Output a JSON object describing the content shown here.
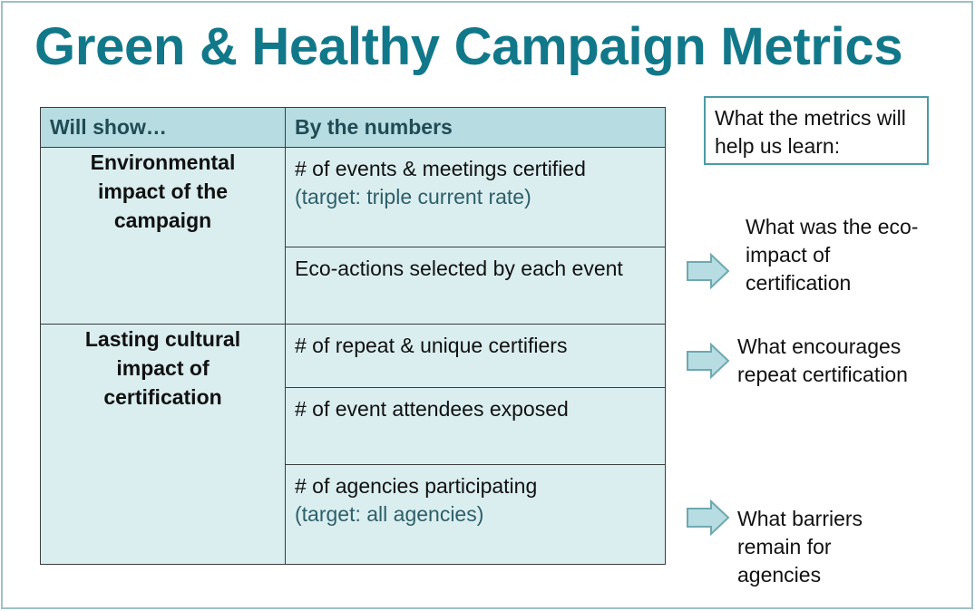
{
  "title": "Green & Healthy Campaign Metrics",
  "table": {
    "headers": [
      "Will show…",
      "By the numbers"
    ],
    "groups": [
      {
        "category": "Environmental impact of the campaign",
        "metrics": [
          {
            "text": "# of events & meetings certified",
            "note": "(target: triple current rate)"
          },
          {
            "text": "Eco-actions selected by each event",
            "note": ""
          }
        ]
      },
      {
        "category": "Lasting cultural impact of certification",
        "metrics": [
          {
            "text": "# of repeat & unique certifiers",
            "note": ""
          },
          {
            "text": "# of event attendees exposed",
            "note": ""
          },
          {
            "text": "# of agencies participating",
            "note": "(target: all agencies)"
          }
        ]
      }
    ]
  },
  "learn": {
    "heading": "What the metrics will help us learn:",
    "items": [
      "What was the eco-impact of certification",
      "What encourages repeat certification",
      "What barriers remain for agencies"
    ]
  },
  "colors": {
    "title": "#11788a",
    "header_fill": "#b7dde2",
    "cell_fill": "#daeef0",
    "arrow_fill": "#b7dde2",
    "arrow_stroke": "#6fa8b0",
    "box_border": "#4a9ba5"
  }
}
